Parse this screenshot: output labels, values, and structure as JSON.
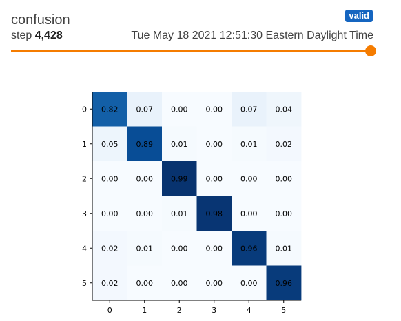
{
  "card": {
    "title": "confusion",
    "badge": "valid",
    "step_label": "step",
    "step_value": "4,428",
    "timestamp": "Tue May 18 2021 12:51:30 Eastern Daylight Time"
  },
  "colors": {
    "accent": "#f57c00",
    "badge": "#1565c0",
    "heat_low": "#f7fbff",
    "heat_high": "#08306b"
  },
  "chart_data": {
    "type": "heatmap",
    "title": "",
    "xlabel": "",
    "ylabel": "",
    "x_ticks": [
      "0",
      "1",
      "2",
      "3",
      "4",
      "5"
    ],
    "y_ticks": [
      "0",
      "1",
      "2",
      "3",
      "4",
      "5"
    ],
    "values": [
      [
        0.82,
        0.07,
        0.0,
        0.0,
        0.07,
        0.04
      ],
      [
        0.05,
        0.89,
        0.01,
        0.0,
        0.01,
        0.02
      ],
      [
        0.0,
        0.0,
        0.99,
        0.0,
        0.0,
        0.0
      ],
      [
        0.0,
        0.0,
        0.01,
        0.98,
        0.0,
        0.0
      ],
      [
        0.02,
        0.01,
        0.0,
        0.0,
        0.96,
        0.01
      ],
      [
        0.02,
        0.0,
        0.0,
        0.0,
        0.0,
        0.96
      ]
    ],
    "colormap": "Blues",
    "value_range": [
      0,
      1
    ]
  }
}
